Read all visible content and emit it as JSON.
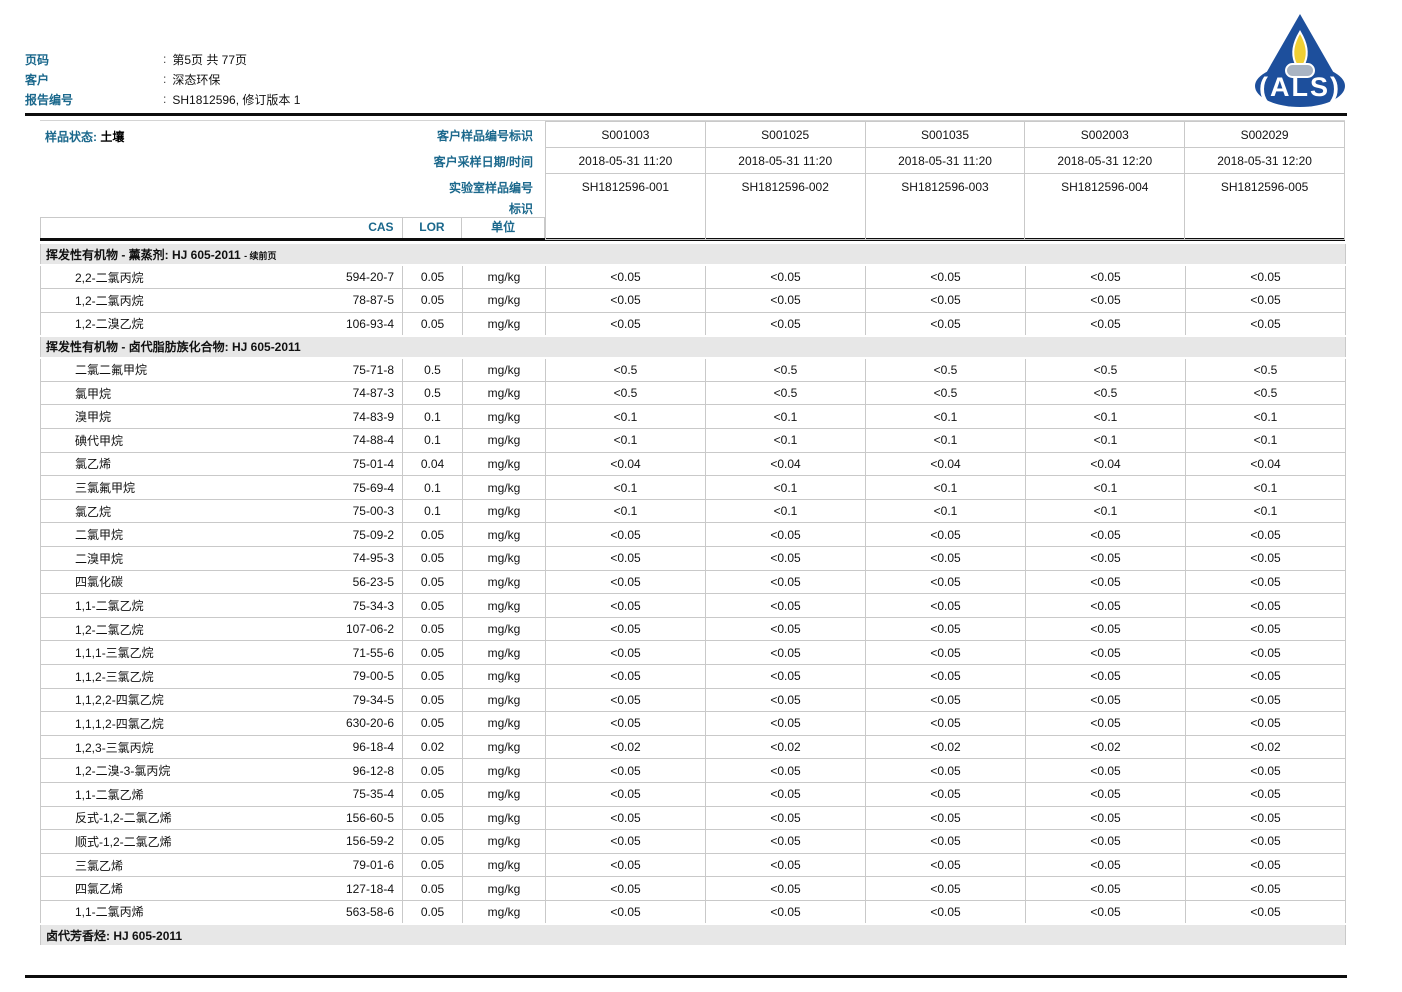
{
  "page_header": {
    "colon": ":",
    "rows": [
      {
        "label": "页码",
        "value": "第5页 共 77页"
      },
      {
        "label": "客户",
        "value": "深态环保"
      },
      {
        "label": "报告编号",
        "value": "SH1812596, 修订版本 1"
      }
    ]
  },
  "logo": {
    "text": "ALS",
    "blue": "#1d4f9c",
    "flame": "#f0cf35",
    "base": "#a9b4c3"
  },
  "sample_header": {
    "status_label": "样品状态:",
    "status_value": "土壤",
    "row_labels": [
      "客户样品编号标识",
      "客户采样日期/时间",
      "实验室样品编号",
      "标识"
    ],
    "samples": [
      {
        "id": "S001003",
        "datetime": "2018-05-31 11:20",
        "lab_id": "SH1812596-001"
      },
      {
        "id": "S001025",
        "datetime": "2018-05-31 11:20",
        "lab_id": "SH1812596-002"
      },
      {
        "id": "S001035",
        "datetime": "2018-05-31 11:20",
        "lab_id": "SH1812596-003"
      },
      {
        "id": "S002003",
        "datetime": "2018-05-31 12:20",
        "lab_id": "SH1812596-004"
      },
      {
        "id": "S002029",
        "datetime": "2018-05-31 12:20",
        "lab_id": "SH1812596-005"
      }
    ]
  },
  "columns": {
    "cas": "CAS",
    "lor": "LOR",
    "unit": "单位"
  },
  "table": {
    "sections": [
      {
        "title": "挥发性有机物 - 薰蒸剂: HJ 605-2011",
        "note": "- 续前页",
        "rows": [
          {
            "name": "2,2-二氯丙烷",
            "cas": "594-20-7",
            "lor": "0.05",
            "unit": "mg/kg",
            "values": [
              "<0.05",
              "<0.05",
              "<0.05",
              "<0.05",
              "<0.05"
            ]
          },
          {
            "name": "1,2-二氯丙烷",
            "cas": "78-87-5",
            "lor": "0.05",
            "unit": "mg/kg",
            "values": [
              "<0.05",
              "<0.05",
              "<0.05",
              "<0.05",
              "<0.05"
            ]
          },
          {
            "name": "1,2-二溴乙烷",
            "cas": "106-93-4",
            "lor": "0.05",
            "unit": "mg/kg",
            "values": [
              "<0.05",
              "<0.05",
              "<0.05",
              "<0.05",
              "<0.05"
            ]
          }
        ]
      },
      {
        "title": "挥发性有机物 - 卤代脂肪族化合物: HJ 605-2011",
        "note": "",
        "rows": [
          {
            "name": "二氯二氟甲烷",
            "cas": "75-71-8",
            "lor": "0.5",
            "unit": "mg/kg",
            "values": [
              "<0.5",
              "<0.5",
              "<0.5",
              "<0.5",
              "<0.5"
            ]
          },
          {
            "name": "氯甲烷",
            "cas": "74-87-3",
            "lor": "0.5",
            "unit": "mg/kg",
            "values": [
              "<0.5",
              "<0.5",
              "<0.5",
              "<0.5",
              "<0.5"
            ]
          },
          {
            "name": "溴甲烷",
            "cas": "74-83-9",
            "lor": "0.1",
            "unit": "mg/kg",
            "values": [
              "<0.1",
              "<0.1",
              "<0.1",
              "<0.1",
              "<0.1"
            ]
          },
          {
            "name": "碘代甲烷",
            "cas": "74-88-4",
            "lor": "0.1",
            "unit": "mg/kg",
            "values": [
              "<0.1",
              "<0.1",
              "<0.1",
              "<0.1",
              "<0.1"
            ]
          },
          {
            "name": "氯乙烯",
            "cas": "75-01-4",
            "lor": "0.04",
            "unit": "mg/kg",
            "values": [
              "<0.04",
              "<0.04",
              "<0.04",
              "<0.04",
              "<0.04"
            ]
          },
          {
            "name": "三氯氟甲烷",
            "cas": "75-69-4",
            "lor": "0.1",
            "unit": "mg/kg",
            "values": [
              "<0.1",
              "<0.1",
              "<0.1",
              "<0.1",
              "<0.1"
            ]
          },
          {
            "name": "氯乙烷",
            "cas": "75-00-3",
            "lor": "0.1",
            "unit": "mg/kg",
            "values": [
              "<0.1",
              "<0.1",
              "<0.1",
              "<0.1",
              "<0.1"
            ]
          },
          {
            "name": "二氯甲烷",
            "cas": "75-09-2",
            "lor": "0.05",
            "unit": "mg/kg",
            "values": [
              "<0.05",
              "<0.05",
              "<0.05",
              "<0.05",
              "<0.05"
            ]
          },
          {
            "name": "二溴甲烷",
            "cas": "74-95-3",
            "lor": "0.05",
            "unit": "mg/kg",
            "values": [
              "<0.05",
              "<0.05",
              "<0.05",
              "<0.05",
              "<0.05"
            ]
          },
          {
            "name": "四氯化碳",
            "cas": "56-23-5",
            "lor": "0.05",
            "unit": "mg/kg",
            "values": [
              "<0.05",
              "<0.05",
              "<0.05",
              "<0.05",
              "<0.05"
            ]
          },
          {
            "name": "1,1-二氯乙烷",
            "cas": "75-34-3",
            "lor": "0.05",
            "unit": "mg/kg",
            "values": [
              "<0.05",
              "<0.05",
              "<0.05",
              "<0.05",
              "<0.05"
            ]
          },
          {
            "name": "1,2-二氯乙烷",
            "cas": "107-06-2",
            "lor": "0.05",
            "unit": "mg/kg",
            "values": [
              "<0.05",
              "<0.05",
              "<0.05",
              "<0.05",
              "<0.05"
            ]
          },
          {
            "name": "1,1,1-三氯乙烷",
            "cas": "71-55-6",
            "lor": "0.05",
            "unit": "mg/kg",
            "values": [
              "<0.05",
              "<0.05",
              "<0.05",
              "<0.05",
              "<0.05"
            ]
          },
          {
            "name": "1,1,2-三氯乙烷",
            "cas": "79-00-5",
            "lor": "0.05",
            "unit": "mg/kg",
            "values": [
              "<0.05",
              "<0.05",
              "<0.05",
              "<0.05",
              "<0.05"
            ]
          },
          {
            "name": "1,1,2,2-四氯乙烷",
            "cas": "79-34-5",
            "lor": "0.05",
            "unit": "mg/kg",
            "values": [
              "<0.05",
              "<0.05",
              "<0.05",
              "<0.05",
              "<0.05"
            ]
          },
          {
            "name": "1,1,1,2-四氯乙烷",
            "cas": "630-20-6",
            "lor": "0.05",
            "unit": "mg/kg",
            "values": [
              "<0.05",
              "<0.05",
              "<0.05",
              "<0.05",
              "<0.05"
            ]
          },
          {
            "name": "1,2,3-三氯丙烷",
            "cas": "96-18-4",
            "lor": "0.02",
            "unit": "mg/kg",
            "values": [
              "<0.02",
              "<0.02",
              "<0.02",
              "<0.02",
              "<0.02"
            ]
          },
          {
            "name": "1,2-二溴-3-氯丙烷",
            "cas": "96-12-8",
            "lor": "0.05",
            "unit": "mg/kg",
            "values": [
              "<0.05",
              "<0.05",
              "<0.05",
              "<0.05",
              "<0.05"
            ]
          },
          {
            "name": "1,1-二氯乙烯",
            "cas": "75-35-4",
            "lor": "0.05",
            "unit": "mg/kg",
            "values": [
              "<0.05",
              "<0.05",
              "<0.05",
              "<0.05",
              "<0.05"
            ]
          },
          {
            "name": "反式-1,2-二氯乙烯",
            "cas": "156-60-5",
            "lor": "0.05",
            "unit": "mg/kg",
            "values": [
              "<0.05",
              "<0.05",
              "<0.05",
              "<0.05",
              "<0.05"
            ]
          },
          {
            "name": "顺式-1,2-二氯乙烯",
            "cas": "156-59-2",
            "lor": "0.05",
            "unit": "mg/kg",
            "values": [
              "<0.05",
              "<0.05",
              "<0.05",
              "<0.05",
              "<0.05"
            ]
          },
          {
            "name": "三氯乙烯",
            "cas": "79-01-6",
            "lor": "0.05",
            "unit": "mg/kg",
            "values": [
              "<0.05",
              "<0.05",
              "<0.05",
              "<0.05",
              "<0.05"
            ]
          },
          {
            "name": "四氯乙烯",
            "cas": "127-18-4",
            "lor": "0.05",
            "unit": "mg/kg",
            "values": [
              "<0.05",
              "<0.05",
              "<0.05",
              "<0.05",
              "<0.05"
            ]
          },
          {
            "name": "1,1-二氯丙烯",
            "cas": "563-58-6",
            "lor": "0.05",
            "unit": "mg/kg",
            "values": [
              "<0.05",
              "<0.05",
              "<0.05",
              "<0.05",
              "<0.05"
            ]
          }
        ]
      },
      {
        "title": "卤代芳香烃: HJ 605-2011",
        "note": "",
        "rows": []
      }
    ]
  },
  "colors": {
    "label_teal": "#1b688c",
    "border_gray": "#c9c9c9",
    "section_bg": "#e7e7e7",
    "rule_black": "#0d0d0d",
    "logo_blue": "#1d4f9c",
    "logo_flame": "#f0cf35",
    "logo_base": "#a9b4c3"
  }
}
